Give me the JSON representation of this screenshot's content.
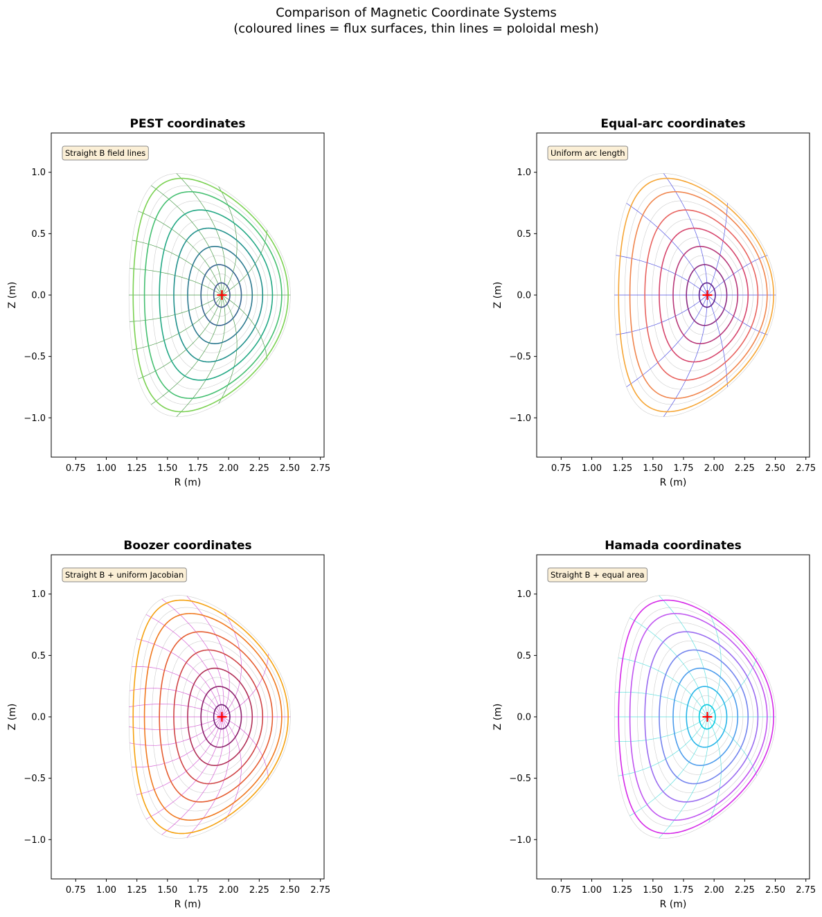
{
  "figure": {
    "title_line1": "Comparison of Magnetic Coordinate Systems",
    "title_line2": "(coloured lines = flux surfaces, thin lines = poloidal mesh)"
  },
  "chart_data": [
    {
      "type": "line",
      "title": "PEST coordinates",
      "annotation": "Straight B field lines",
      "xlabel": "R (m)",
      "ylabel": "Z (m)",
      "xlim": [
        0.55,
        2.78
      ],
      "ylim": [
        -1.32,
        1.32
      ],
      "x_ticks": [
        0.75,
        1.0,
        1.25,
        1.5,
        1.75,
        2.0,
        2.25,
        2.5,
        2.75
      ],
      "x_tick_labels": [
        "0.75",
        "1.00",
        "1.25",
        "1.50",
        "1.75",
        "2.00",
        "2.25",
        "2.50",
        "2.75"
      ],
      "y_ticks": [
        -1.0,
        -0.5,
        0.0,
        0.5,
        1.0
      ],
      "y_tick_labels": [
        "−1.0",
        "−0.5",
        "0.0",
        "0.5",
        "1.0"
      ],
      "axis": {
        "R0": 1.945,
        "Z0": 0.0
      },
      "geometry": {
        "minor_radius": 0.66,
        "elongation": 1.5,
        "triangularity": 0.4,
        "shafranov_shift": 0.1
      },
      "flux_surfaces_rho": [
        0.1,
        0.25,
        0.4,
        0.55,
        0.7,
        0.85,
        0.96
      ],
      "flux_surface_colors": [
        "#3b528b",
        "#33638d",
        "#2a788e",
        "#21918c",
        "#22a884",
        "#44bf70",
        "#7ad151"
      ],
      "background_surfaces_rho": [
        0.175,
        0.325,
        0.475,
        0.625,
        0.775,
        0.9,
        1.0
      ],
      "mesh": {
        "lines": 16,
        "color": "#2e8b2e",
        "scheme": "pest"
      }
    },
    {
      "type": "line",
      "title": "Equal-arc coordinates",
      "annotation": "Uniform arc length",
      "xlabel": "R (m)",
      "ylabel": "Z (m)",
      "xlim": [
        0.55,
        2.78
      ],
      "ylim": [
        -1.32,
        1.32
      ],
      "x_ticks": [
        0.75,
        1.0,
        1.25,
        1.5,
        1.75,
        2.0,
        2.25,
        2.5,
        2.75
      ],
      "x_tick_labels": [
        "0.75",
        "1.00",
        "1.25",
        "1.50",
        "1.75",
        "2.00",
        "2.25",
        "2.50",
        "2.75"
      ],
      "y_ticks": [
        -1.0,
        -0.5,
        0.0,
        0.5,
        1.0
      ],
      "y_tick_labels": [
        "−1.0",
        "−0.5",
        "0.0",
        "0.5",
        "1.0"
      ],
      "axis": {
        "R0": 1.945,
        "Z0": 0.0
      },
      "geometry": {
        "minor_radius": 0.66,
        "elongation": 1.5,
        "triangularity": 0.4,
        "shafranov_shift": 0.1
      },
      "flux_surfaces_rho": [
        0.1,
        0.25,
        0.4,
        0.55,
        0.7,
        0.85,
        0.96
      ],
      "flux_surface_colors": [
        "#5b1a8a",
        "#8c2981",
        "#b73779",
        "#d6456c",
        "#e8635f",
        "#f0854d",
        "#f6a534"
      ],
      "background_surfaces_rho": [
        0.175,
        0.325,
        0.475,
        0.625,
        0.775,
        0.9,
        1.0
      ],
      "mesh": {
        "lines": 12,
        "color": "#3333dd",
        "scheme": "equal_arc"
      }
    },
    {
      "type": "line",
      "title": "Boozer coordinates",
      "annotation": "Straight B + uniform Jacobian",
      "xlabel": "R (m)",
      "ylabel": "Z (m)",
      "xlim": [
        0.55,
        2.78
      ],
      "ylim": [
        -1.32,
        1.32
      ],
      "x_ticks": [
        0.75,
        1.0,
        1.25,
        1.5,
        1.75,
        2.0,
        2.25,
        2.5,
        2.75
      ],
      "x_tick_labels": [
        "0.75",
        "1.00",
        "1.25",
        "1.50",
        "1.75",
        "2.00",
        "2.25",
        "2.50",
        "2.75"
      ],
      "y_ticks": [
        -1.0,
        -0.5,
        0.0,
        0.5,
        1.0
      ],
      "y_tick_labels": [
        "−1.0",
        "−0.5",
        "0.0",
        "0.5",
        "1.0"
      ],
      "axis": {
        "R0": 1.945,
        "Z0": 0.0
      },
      "geometry": {
        "minor_radius": 0.66,
        "elongation": 1.5,
        "triangularity": 0.4,
        "shafranov_shift": 0.1
      },
      "flux_surfaces_rho": [
        0.1,
        0.25,
        0.4,
        0.55,
        0.7,
        0.85,
        0.96
      ],
      "flux_surface_colors": [
        "#6a176e",
        "#8c1f6a",
        "#b02e55",
        "#cf4446",
        "#e55c30",
        "#f0781e",
        "#f5a10f"
      ],
      "background_surfaces_rho": [
        0.175,
        0.325,
        0.475,
        0.625,
        0.775,
        0.9,
        1.0
      ],
      "mesh": {
        "lines": 20,
        "color": "#cc44cc",
        "scheme": "boozer"
      }
    },
    {
      "type": "line",
      "title": "Hamada coordinates",
      "annotation": "Straight B + equal area",
      "xlabel": "R (m)",
      "ylabel": "Z (m)",
      "xlim": [
        0.55,
        2.78
      ],
      "ylim": [
        -1.32,
        1.32
      ],
      "x_ticks": [
        0.75,
        1.0,
        1.25,
        1.5,
        1.75,
        2.0,
        2.25,
        2.5,
        2.75
      ],
      "x_tick_labels": [
        "0.75",
        "1.00",
        "1.25",
        "1.50",
        "1.75",
        "2.00",
        "2.25",
        "2.50",
        "2.75"
      ],
      "y_ticks": [
        -1.0,
        -0.5,
        0.0,
        0.5,
        1.0
      ],
      "y_tick_labels": [
        "−1.0",
        "−0.5",
        "0.0",
        "0.5",
        "1.0"
      ],
      "axis": {
        "R0": 1.945,
        "Z0": 0.0
      },
      "geometry": {
        "minor_radius": 0.66,
        "elongation": 1.5,
        "triangularity": 0.4,
        "shafranov_shift": 0.1
      },
      "flux_surfaces_rho": [
        0.1,
        0.25,
        0.4,
        0.55,
        0.7,
        0.85,
        0.96
      ],
      "flux_surface_colors": [
        "#00c8e0",
        "#26b4e8",
        "#4c9cec",
        "#7384ee",
        "#9a6cf0",
        "#c055f0",
        "#d52ae8"
      ],
      "background_surfaces_rho": [
        0.175,
        0.325,
        0.475,
        0.625,
        0.775,
        0.9,
        1.0
      ],
      "mesh": {
        "lines": 14,
        "color": "#40d8d8",
        "scheme": "hamada"
      }
    }
  ],
  "colors": {
    "axis_marker": "#ff0000",
    "background_surface": "#cccccc",
    "annotation_fill": "#fbefd6",
    "annotation_edge": "#8a8a8a"
  }
}
